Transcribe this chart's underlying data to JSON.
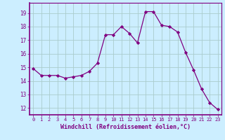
{
  "hours": [
    0,
    1,
    2,
    3,
    4,
    5,
    6,
    7,
    8,
    9,
    10,
    11,
    12,
    13,
    14,
    15,
    16,
    17,
    18,
    19,
    20,
    21,
    22,
    23
  ],
  "values": [
    14.9,
    14.4,
    14.4,
    14.4,
    14.2,
    14.3,
    14.4,
    14.7,
    15.3,
    17.4,
    17.4,
    18.0,
    17.5,
    16.8,
    19.1,
    19.1,
    18.1,
    18.0,
    17.6,
    16.1,
    14.8,
    13.4,
    12.4,
    11.9
  ],
  "xlim": [
    -0.5,
    23.5
  ],
  "ylim": [
    11.5,
    19.75
  ],
  "yticks": [
    12,
    13,
    14,
    15,
    16,
    17,
    18,
    19
  ],
  "xticks": [
    0,
    1,
    2,
    3,
    4,
    5,
    6,
    7,
    8,
    9,
    10,
    11,
    12,
    13,
    14,
    15,
    16,
    17,
    18,
    19,
    20,
    21,
    22,
    23
  ],
  "xlabel": "Windchill (Refroidissement éolien,°C)",
  "line_color": "#800080",
  "marker": "D",
  "marker_size": 2.2,
  "bg_color": "#cceeff",
  "grid_color": "#aacccc",
  "tick_color": "#800080",
  "label_color": "#800080"
}
